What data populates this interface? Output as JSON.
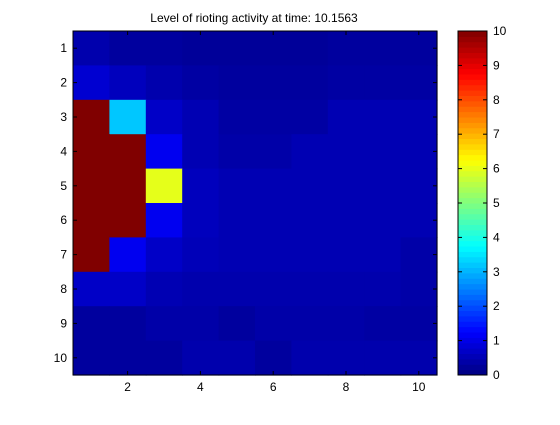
{
  "chart_data": {
    "type": "heatmap",
    "title": "Level of rioting activity at time: 10.1563",
    "xlabel": "",
    "ylabel": "",
    "rows": 10,
    "cols": 10,
    "x_ticks": [
      2,
      4,
      6,
      8,
      10
    ],
    "y_ticks": [
      1,
      2,
      3,
      4,
      5,
      6,
      7,
      8,
      9,
      10
    ],
    "color_range": [
      0,
      10
    ],
    "colorbar_ticks": [
      0,
      1,
      2,
      3,
      4,
      5,
      6,
      7,
      8,
      9,
      10
    ],
    "colormap": "jet",
    "values": [
      [
        0.45,
        0.3,
        0.3,
        0.25,
        0.25,
        0.25,
        0.25,
        0.3,
        0.3,
        0.3
      ],
      [
        0.8,
        0.6,
        0.45,
        0.35,
        0.3,
        0.3,
        0.3,
        0.35,
        0.35,
        0.35
      ],
      [
        10,
        3.2,
        0.7,
        0.5,
        0.35,
        0.35,
        0.35,
        0.5,
        0.5,
        0.5
      ],
      [
        10,
        10,
        1.1,
        0.5,
        0.4,
        0.4,
        0.5,
        0.5,
        0.5,
        0.5
      ],
      [
        10,
        10,
        6.0,
        0.6,
        0.5,
        0.5,
        0.5,
        0.5,
        0.5,
        0.5
      ],
      [
        10,
        10,
        1.1,
        0.6,
        0.5,
        0.5,
        0.5,
        0.5,
        0.5,
        0.5
      ],
      [
        10,
        1.1,
        0.7,
        0.55,
        0.5,
        0.5,
        0.5,
        0.5,
        0.5,
        0.4
      ],
      [
        0.7,
        0.7,
        0.5,
        0.45,
        0.45,
        0.45,
        0.45,
        0.45,
        0.45,
        0.4
      ],
      [
        0.3,
        0.3,
        0.4,
        0.4,
        0.3,
        0.4,
        0.4,
        0.4,
        0.35,
        0.35
      ],
      [
        0.3,
        0.3,
        0.3,
        0.45,
        0.45,
        0.3,
        0.45,
        0.45,
        0.45,
        0.45
      ]
    ]
  }
}
